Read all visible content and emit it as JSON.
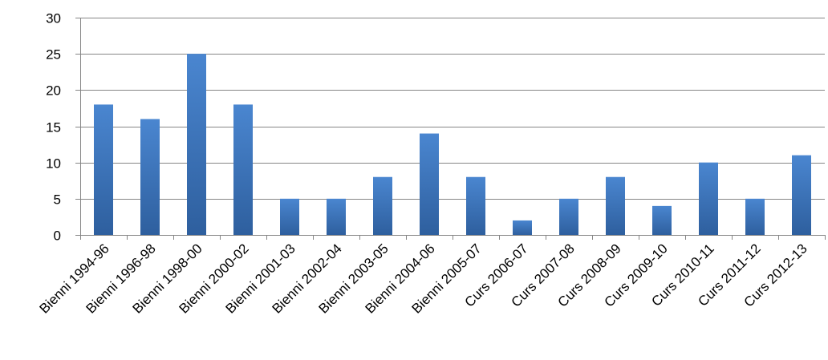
{
  "chart_data": {
    "type": "bar",
    "title": "",
    "xlabel": "",
    "ylabel": "",
    "ylim": [
      0,
      30
    ],
    "yticks": [
      0,
      5,
      10,
      15,
      20,
      25,
      30
    ],
    "grid": true,
    "legend": "none",
    "categories": [
      "Bienni 1994-96",
      "Bienni 1996-98",
      "Bienni 1998-00",
      "Bienni 2000-02",
      "Bienni 2001-03",
      "Bienni 2002-04",
      "Bienni 2003-05",
      "Bienni 2004-06",
      "Bienni 2005-07",
      "Curs 2006-07",
      "Curs 2007-08",
      "Curs 2008-09",
      "Curs 2009-10",
      "Curs 2010-11",
      "Curs 2011-12",
      "Curs 2012-13"
    ],
    "values": [
      18,
      16,
      25,
      18,
      5,
      5,
      8,
      14,
      8,
      2,
      5,
      8,
      4,
      10,
      5,
      11
    ],
    "colors": {
      "bar_top": "#4a86d0",
      "bar_bottom": "#2e5f9e",
      "grid": "#868686"
    }
  }
}
